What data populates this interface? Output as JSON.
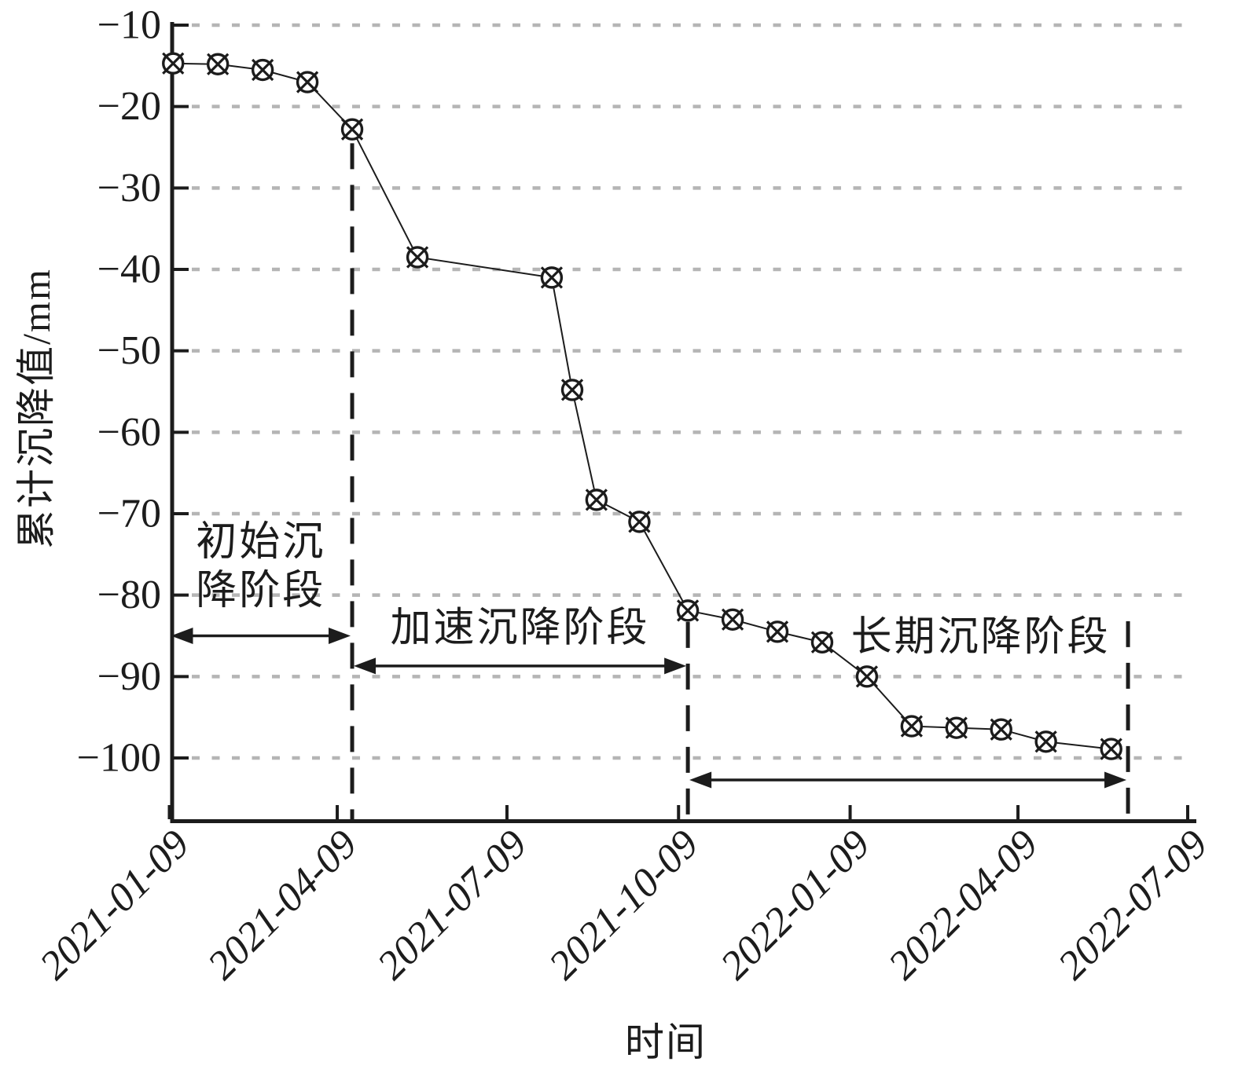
{
  "figure": {
    "background": "#ffffff",
    "ink_color": "#1c1c1c",
    "grid_color": "#b5b5b5"
  },
  "chart_data": {
    "type": "line",
    "title": "",
    "xlabel": "时间",
    "ylabel": "累计沉降值/mm",
    "legend": "none",
    "grid": "dotted horizontal gridlines at each y tick",
    "x_axis": {
      "unit": "date",
      "tick_labels": [
        "2021-01-09",
        "2021-04-09",
        "2021-07-09",
        "2021-10-09",
        "2022-01-09",
        "2022-04-09",
        "2022-07-09"
      ],
      "tick_days": [
        0,
        90,
        181,
        273,
        365,
        455,
        546
      ],
      "domain_days": [
        0,
        546
      ],
      "label_rotation_deg": 45
    },
    "y_axis": {
      "unit": "mm",
      "ticks": [
        -10,
        -20,
        -30,
        -40,
        -50,
        -60,
        -70,
        -80,
        -90,
        -100
      ],
      "tick_labels": [
        "−10",
        "−20",
        "−30",
        "−40",
        "−50",
        "−60",
        "−70",
        "−80",
        "−90",
        "−100"
      ],
      "ylim": [
        -108,
        -9
      ]
    },
    "series": [
      {
        "name": "累计沉降值",
        "marker": "circle-cross",
        "x_unit": "days since 2021-01-09",
        "points": [
          {
            "day": 2,
            "mm": -14.7
          },
          {
            "day": 26,
            "mm": -14.8
          },
          {
            "day": 50,
            "mm": -15.5
          },
          {
            "day": 74,
            "mm": -17.0
          },
          {
            "day": 98,
            "mm": -22.8
          },
          {
            "day": 133,
            "mm": -38.5
          },
          {
            "day": 205,
            "mm": -41.0
          },
          {
            "day": 216,
            "mm": -54.8
          },
          {
            "day": 229,
            "mm": -68.3
          },
          {
            "day": 252,
            "mm": -71.0
          },
          {
            "day": 278,
            "mm": -81.9
          },
          {
            "day": 302,
            "mm": -83.0
          },
          {
            "day": 326,
            "mm": -84.5
          },
          {
            "day": 350,
            "mm": -85.8
          },
          {
            "day": 374,
            "mm": -90.0
          },
          {
            "day": 398,
            "mm": -96.1
          },
          {
            "day": 422,
            "mm": -96.3
          },
          {
            "day": 446,
            "mm": -96.5
          },
          {
            "day": 470,
            "mm": -98.0
          },
          {
            "day": 505,
            "mm": -98.9
          }
        ]
      }
    ],
    "phases": [
      {
        "label": "初始沉降阶段",
        "label_lines": [
          "初始沉",
          "降阶段"
        ],
        "start_day": 0,
        "end_day": 98,
        "arrow_y_mm": -85.0,
        "label_center_day": 49,
        "label_y_mm": -76.5
      },
      {
        "label": "加速沉降阶段",
        "label_lines": [
          "加速沉降阶段"
        ],
        "start_day": 98,
        "end_day": 278,
        "arrow_y_mm": -88.7,
        "label_center_day": 188,
        "label_y_mm": -84.1
      },
      {
        "label": "长期沉降阶段",
        "label_lines": [
          "长期沉降阶段"
        ],
        "start_day": 278,
        "end_day": 514,
        "arrow_y_mm": -102.7,
        "label_center_day": 435,
        "label_y_mm": -85.2
      }
    ],
    "boundaries": [
      {
        "day": 98,
        "top_mm": -24.5
      },
      {
        "day": 278,
        "top_mm": -83.3
      },
      {
        "day": 514,
        "top_mm": -83.2
      }
    ]
  }
}
